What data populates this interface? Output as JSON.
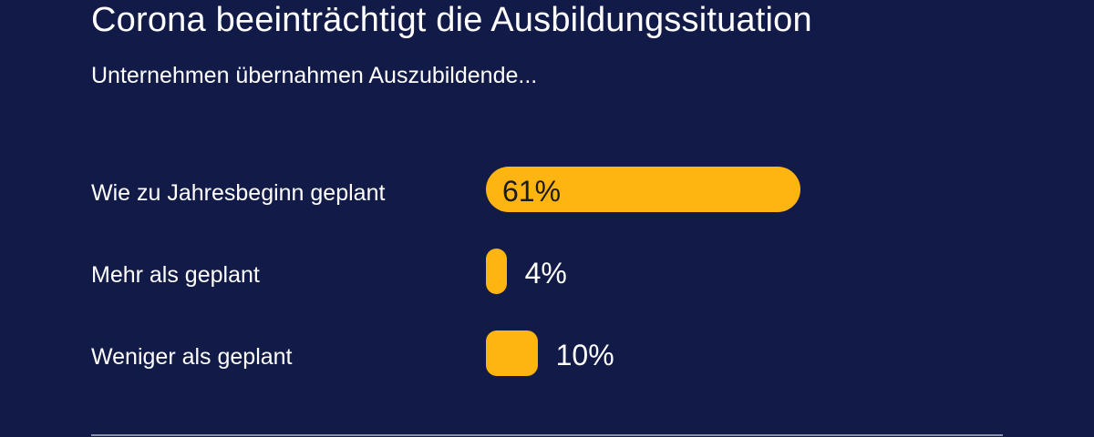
{
  "chart_data": {
    "type": "bar",
    "orientation": "horizontal",
    "title": "Corona beeinträchtigt die Ausbildungssituation",
    "subtitle": "Unternehmen übernahmen Auszubildende...",
    "categories": [
      "Wie zu Jahresbeginn geplant",
      "Mehr als geplant",
      "Weniger als geplant"
    ],
    "values": [
      61,
      4,
      10
    ],
    "value_labels": [
      "61%",
      "4%",
      "10%"
    ],
    "unit": "%",
    "xlim": [
      0,
      100
    ],
    "grid": false,
    "legend": "none"
  },
  "colors": {
    "background": "#121a47",
    "bar": "#ffb511",
    "text": "#ffffff",
    "label_inside": "#1a1a1a",
    "divider": "#8c90a8"
  }
}
